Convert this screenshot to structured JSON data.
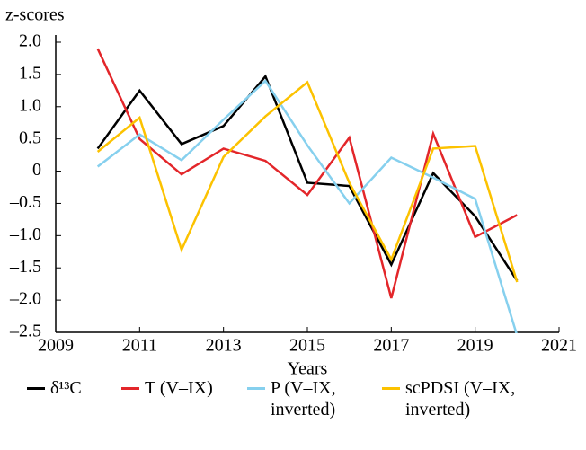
{
  "chart_data": {
    "type": "line",
    "ylabel": "z-scores",
    "xlabel": "Years",
    "x": [
      2010,
      2011,
      2012,
      2013,
      2014,
      2015,
      2016,
      2017,
      2018,
      2019,
      2020
    ],
    "xlim": [
      2009,
      2021
    ],
    "xticks": [
      2009,
      2011,
      2013,
      2015,
      2017,
      2019,
      2021
    ],
    "ylim": [
      -2.5,
      2.0
    ],
    "yticks": [
      {
        "value": 2.0,
        "label": "2.0"
      },
      1.5,
      {
        "value": 1.0,
        "label": "1.0"
      },
      0.5,
      0,
      {
        "value": -0.5,
        "label": "–0.5"
      },
      {
        "value": -1.0,
        "label": "–1.0"
      },
      {
        "value": -1.5,
        "label": "–1.5"
      },
      {
        "value": -2.0,
        "label": "–2.0"
      },
      {
        "value": -2.5,
        "label": "–2.5"
      }
    ],
    "series": [
      {
        "name": "δ¹³C",
        "color": "#000000",
        "values": [
          0.35,
          1.25,
          0.42,
          0.7,
          1.47,
          -0.18,
          -0.23,
          -1.45,
          -0.03,
          -0.7,
          -1.7
        ]
      },
      {
        "name": "T (V–IX)",
        "color": "#e3262a",
        "values": [
          1.9,
          0.5,
          -0.05,
          0.35,
          0.16,
          -0.37,
          0.52,
          -1.97,
          0.58,
          -1.02,
          -0.68
        ]
      },
      {
        "name": "P (V–IX, inverted)",
        "color": "#86d0ee",
        "values": [
          0.07,
          0.57,
          0.17,
          0.8,
          1.4,
          0.4,
          -0.5,
          0.21,
          -0.1,
          -0.43,
          -2.55
        ]
      },
      {
        "name": "scPDSI (V–IX, inverted)",
        "color": "#fcc200",
        "values": [
          0.3,
          0.83,
          -1.22,
          0.22,
          0.85,
          1.38,
          -0.18,
          -1.37,
          0.35,
          0.39,
          -1.72
        ]
      }
    ]
  }
}
